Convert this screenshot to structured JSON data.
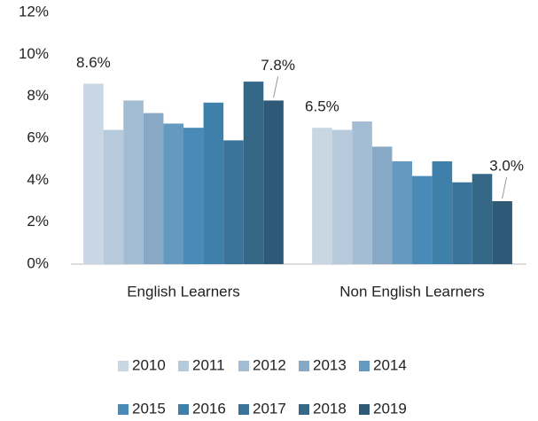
{
  "chart_data": {
    "type": "bar",
    "categories": [
      "English Learners",
      "Non English Learners"
    ],
    "series": [
      {
        "name": "2010",
        "color": "#c9d6e3",
        "values": [
          8.6,
          6.5
        ],
        "value_labels": [
          "8.6%",
          "6.5%"
        ]
      },
      {
        "name": "2011",
        "color": "#b7cadb",
        "values": [
          6.4,
          6.4
        ]
      },
      {
        "name": "2012",
        "color": "#a2bcd3",
        "values": [
          7.8,
          6.8
        ]
      },
      {
        "name": "2013",
        "color": "#88a9c6",
        "values": [
          7.2,
          5.6
        ]
      },
      {
        "name": "2014",
        "color": "#6499c0",
        "values": [
          6.7,
          4.9
        ]
      },
      {
        "name": "2015",
        "color": "#4a8ab8",
        "values": [
          6.5,
          4.2
        ]
      },
      {
        "name": "2016",
        "color": "#3f80ab",
        "values": [
          7.7,
          4.9
        ]
      },
      {
        "name": "2017",
        "color": "#3a7399",
        "values": [
          5.9,
          3.9
        ]
      },
      {
        "name": "2018",
        "color": "#356886",
        "values": [
          8.7,
          4.3
        ]
      },
      {
        "name": "2019",
        "color": "#2e5a78",
        "values": [
          7.8,
          3.0
        ],
        "value_labels": [
          "7.8%",
          "3.0%"
        ]
      }
    ],
    "ylim": [
      0,
      12
    ],
    "yticks": [
      {
        "value": 0,
        "label": "0%"
      },
      {
        "value": 2,
        "label": "2%"
      },
      {
        "value": 4,
        "label": "4%"
      },
      {
        "value": 6,
        "label": "6%"
      },
      {
        "value": 8,
        "label": "8%"
      },
      {
        "value": 10,
        "label": "10%"
      },
      {
        "value": 12,
        "label": "12%"
      }
    ],
    "legend": "bottom"
  }
}
